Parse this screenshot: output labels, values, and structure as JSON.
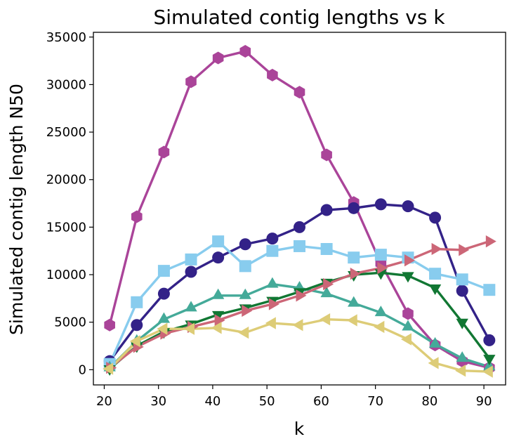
{
  "chart_data": {
    "type": "line",
    "title": "Simulated contig lengths vs k",
    "xlabel": "k",
    "ylabel": "Simulated contig length N50",
    "xlim": [
      18,
      94
    ],
    "ylim": [
      -1600,
      35500
    ],
    "xticks": [
      20,
      30,
      40,
      50,
      60,
      70,
      80,
      90
    ],
    "yticks": [
      0,
      5000,
      10000,
      15000,
      20000,
      25000,
      30000,
      35000
    ],
    "grid": false,
    "legend": "none",
    "x": [
      21,
      26,
      31,
      36,
      41,
      46,
      51,
      56,
      61,
      66,
      71,
      76,
      81,
      86,
      91
    ],
    "series": [
      {
        "color": "#aa4499",
        "marker": "hexagon",
        "values": [
          4700,
          16100,
          22900,
          30300,
          32800,
          33500,
          31000,
          29200,
          22600,
          17600,
          11200,
          5900,
          2600,
          900,
          200
        ]
      },
      {
        "color": "#332288",
        "marker": "circle",
        "values": [
          900,
          4700,
          8000,
          10300,
          11800,
          13200,
          13800,
          15000,
          16800,
          17000,
          17400,
          17200,
          16000,
          8300,
          3100
        ]
      },
      {
        "color": "#88ccee",
        "marker": "square",
        "values": [
          600,
          7100,
          10400,
          11600,
          13500,
          10900,
          12500,
          13000,
          12700,
          11800,
          12100,
          11800,
          10100,
          9500,
          8400
        ]
      },
      {
        "color": "#44aa99",
        "marker": "triangle-up",
        "values": [
          200,
          3000,
          5300,
          6500,
          7800,
          7800,
          9000,
          8600,
          8000,
          7000,
          6000,
          4500,
          2700,
          1200,
          300
        ]
      },
      {
        "color": "#117733",
        "marker": "triangle-down",
        "values": [
          100,
          2500,
          4000,
          4800,
          5800,
          6500,
          7300,
          8200,
          9200,
          10000,
          10200,
          9900,
          8600,
          5000,
          1200
        ]
      },
      {
        "color": "#cc6677",
        "marker": "triangle-right",
        "values": [
          200,
          2400,
          3800,
          4500,
          5200,
          6200,
          6900,
          7800,
          9000,
          10100,
          10700,
          11500,
          12700,
          12600,
          13500
        ]
      },
      {
        "color": "#ddcc77",
        "marker": "triangle-left",
        "values": [
          100,
          3000,
          4300,
          4300,
          4400,
          3900,
          4900,
          4700,
          5300,
          5200,
          4500,
          3200,
          700,
          -100,
          -200
        ]
      }
    ]
  }
}
